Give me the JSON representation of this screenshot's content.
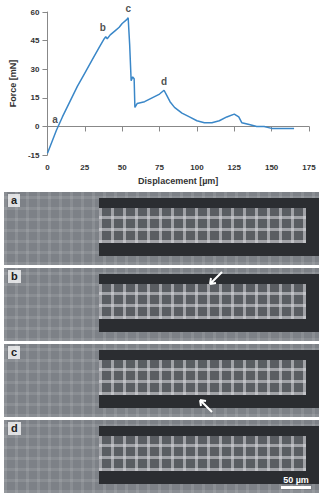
{
  "chart_data": {
    "type": "line",
    "x_label": "Displacement [µm]",
    "y_label": "Force [mN]",
    "x": [
      0,
      3,
      6,
      10,
      15,
      20,
      25,
      30,
      35,
      38,
      39,
      40,
      42,
      45,
      48,
      50,
      53,
      54,
      55,
      56,
      57,
      58,
      58.5,
      60,
      65,
      70,
      75,
      78,
      80,
      82,
      85,
      90,
      95,
      100,
      105,
      110,
      115,
      120,
      125,
      128,
      130,
      135,
      140,
      145,
      150,
      155,
      160,
      165
    ],
    "values": [
      -14,
      -8,
      -2,
      5,
      13,
      21,
      28,
      35,
      42,
      46,
      47,
      46,
      48,
      50,
      52,
      54,
      56,
      57,
      43,
      24,
      26,
      25,
      10,
      12,
      13,
      15,
      17,
      19,
      16,
      13,
      10,
      7,
      5,
      3,
      2,
      2,
      3,
      5,
      6.5,
      5,
      2,
      1,
      0,
      0,
      -1,
      -1,
      -1,
      -1
    ],
    "color": "#3a87c8",
    "xlim": [
      0,
      175
    ],
    "xticks": [
      0,
      25,
      50,
      75,
      100,
      125,
      150,
      175
    ],
    "ylim": [
      -15,
      60
    ],
    "yticks": [
      -15,
      0,
      15,
      30,
      45,
      60
    ],
    "grid": false,
    "annotations": [
      {
        "text": "a",
        "x": 5,
        "y": -1
      },
      {
        "text": "b",
        "x": 37,
        "y": 47
      },
      {
        "text": "c",
        "x": 54,
        "y": 57
      },
      {
        "text": "d",
        "x": 78,
        "y": 19
      }
    ]
  },
  "panels": [
    {
      "label": "a",
      "arrow": "none"
    },
    {
      "label": "b",
      "arrow": "top"
    },
    {
      "label": "c",
      "arrow": "bottom"
    },
    {
      "label": "d",
      "arrow": "none"
    }
  ],
  "scale_bar": {
    "label": "50 µm"
  }
}
